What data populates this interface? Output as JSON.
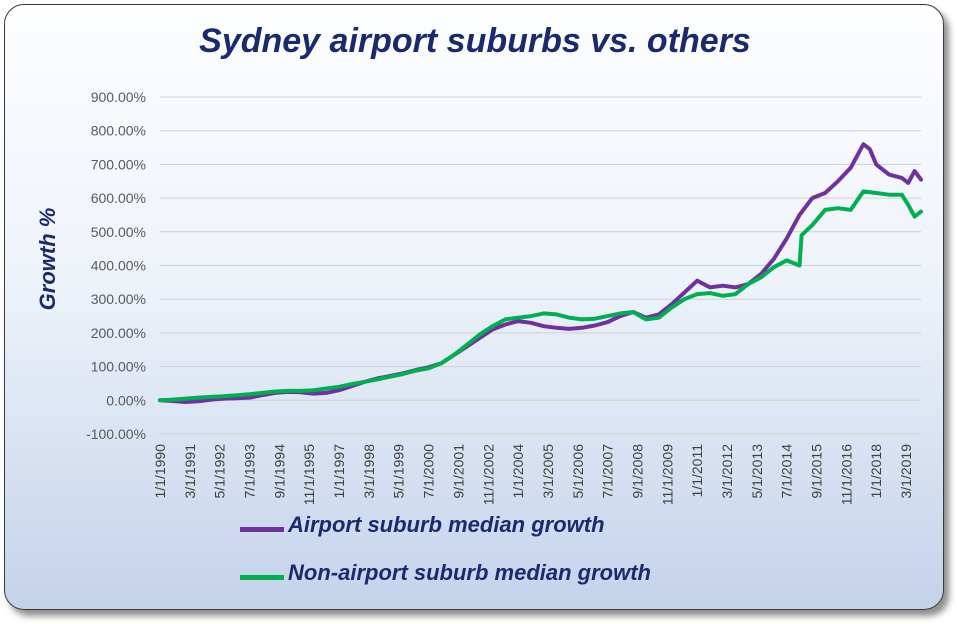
{
  "chart_data": {
    "type": "line",
    "title": "Sydney airport suburbs vs. others",
    "xlabel": "",
    "ylabel": "Growth %",
    "ylim": [
      -100,
      900
    ],
    "yticks": [
      "900.00%",
      "800.00%",
      "700.00%",
      "600.00%",
      "500.00%",
      "400.00%",
      "300.00%",
      "200.00%",
      "100.00%",
      "0.00%",
      "-100.00%"
    ],
    "xticks": [
      "1/1/1990",
      "3/1/1991",
      "5/1/1992",
      "7/1/1993",
      "9/1/1994",
      "11/1/1995",
      "1/1/1997",
      "3/1/1998",
      "5/1/1999",
      "7/1/2000",
      "9/1/2001",
      "11/1/2002",
      "1/1/2004",
      "3/1/2005",
      "5/1/2006",
      "7/1/2007",
      "9/1/2008",
      "11/1/2009",
      "1/1/2011",
      "3/1/2012",
      "5/1/2013",
      "7/1/2014",
      "9/1/2015",
      "11/1/2016",
      "1/1/2018",
      "3/1/2019"
    ],
    "grid": true,
    "legend_position": "bottom",
    "series": [
      {
        "name": "Airport suburb median growth",
        "color": "#7030a0",
        "points": [
          [
            "1990-01",
            0
          ],
          [
            "1990-07",
            -2
          ],
          [
            "1991-01",
            -5
          ],
          [
            "1991-07",
            -3
          ],
          [
            "1992-01",
            2
          ],
          [
            "1992-07",
            5
          ],
          [
            "1993-01",
            6
          ],
          [
            "1993-07",
            8
          ],
          [
            "1994-01",
            15
          ],
          [
            "1994-07",
            22
          ],
          [
            "1995-01",
            25
          ],
          [
            "1995-07",
            24
          ],
          [
            "1996-01",
            20
          ],
          [
            "1996-07",
            22
          ],
          [
            "1997-01",
            30
          ],
          [
            "1997-07",
            42
          ],
          [
            "1998-01",
            55
          ],
          [
            "1998-07",
            65
          ],
          [
            "1999-01",
            72
          ],
          [
            "1999-07",
            80
          ],
          [
            "2000-01",
            90
          ],
          [
            "2000-07",
            98
          ],
          [
            "2001-01",
            110
          ],
          [
            "2001-07",
            135
          ],
          [
            "2002-01",
            160
          ],
          [
            "2002-07",
            185
          ],
          [
            "2003-01",
            210
          ],
          [
            "2003-07",
            225
          ],
          [
            "2004-01",
            235
          ],
          [
            "2004-07",
            230
          ],
          [
            "2005-01",
            220
          ],
          [
            "2005-07",
            215
          ],
          [
            "2006-01",
            212
          ],
          [
            "2006-07",
            215
          ],
          [
            "2007-01",
            222
          ],
          [
            "2007-07",
            232
          ],
          [
            "2008-01",
            250
          ],
          [
            "2008-07",
            262
          ],
          [
            "2009-01",
            245
          ],
          [
            "2009-07",
            255
          ],
          [
            "2010-01",
            285
          ],
          [
            "2010-07",
            320
          ],
          [
            "2011-01",
            355
          ],
          [
            "2011-07",
            335
          ],
          [
            "2012-01",
            340
          ],
          [
            "2012-07",
            335
          ],
          [
            "2013-01",
            345
          ],
          [
            "2013-07",
            375
          ],
          [
            "2014-01",
            420
          ],
          [
            "2014-07",
            480
          ],
          [
            "2015-01",
            550
          ],
          [
            "2015-07",
            600
          ],
          [
            "2016-01",
            615
          ],
          [
            "2016-07",
            650
          ],
          [
            "2017-01",
            690
          ],
          [
            "2017-07",
            760
          ],
          [
            "2017-10",
            745
          ],
          [
            "2018-01",
            700
          ],
          [
            "2018-07",
            670
          ],
          [
            "2019-01",
            660
          ],
          [
            "2019-04",
            645
          ],
          [
            "2019-07",
            680
          ],
          [
            "2019-10",
            655
          ]
        ]
      },
      {
        "name": "Non-airport suburb median growth",
        "color": "#00b050",
        "points": [
          [
            "1990-01",
            0
          ],
          [
            "1990-07",
            2
          ],
          [
            "1991-01",
            5
          ],
          [
            "1991-07",
            8
          ],
          [
            "1992-01",
            10
          ],
          [
            "1992-07",
            12
          ],
          [
            "1993-01",
            15
          ],
          [
            "1993-07",
            18
          ],
          [
            "1994-01",
            22
          ],
          [
            "1994-07",
            26
          ],
          [
            "1995-01",
            28
          ],
          [
            "1995-07",
            28
          ],
          [
            "1996-01",
            30
          ],
          [
            "1996-07",
            35
          ],
          [
            "1997-01",
            40
          ],
          [
            "1997-07",
            48
          ],
          [
            "1998-01",
            55
          ],
          [
            "1998-07",
            62
          ],
          [
            "1999-01",
            70
          ],
          [
            "1999-07",
            78
          ],
          [
            "2000-01",
            88
          ],
          [
            "2000-07",
            95
          ],
          [
            "2001-01",
            110
          ],
          [
            "2001-07",
            135
          ],
          [
            "2002-01",
            165
          ],
          [
            "2002-07",
            195
          ],
          [
            "2003-01",
            220
          ],
          [
            "2003-07",
            240
          ],
          [
            "2004-01",
            245
          ],
          [
            "2004-07",
            250
          ],
          [
            "2005-01",
            258
          ],
          [
            "2005-07",
            255
          ],
          [
            "2006-01",
            245
          ],
          [
            "2006-07",
            240
          ],
          [
            "2007-01",
            242
          ],
          [
            "2007-07",
            250
          ],
          [
            "2008-01",
            258
          ],
          [
            "2008-07",
            262
          ],
          [
            "2009-01",
            240
          ],
          [
            "2009-07",
            245
          ],
          [
            "2010-01",
            275
          ],
          [
            "2010-07",
            300
          ],
          [
            "2011-01",
            315
          ],
          [
            "2011-07",
            318
          ],
          [
            "2012-01",
            310
          ],
          [
            "2012-07",
            315
          ],
          [
            "2013-01",
            345
          ],
          [
            "2013-07",
            365
          ],
          [
            "2014-01",
            395
          ],
          [
            "2014-07",
            415
          ],
          [
            "2015-01",
            400
          ],
          [
            "2015-02",
            490
          ],
          [
            "2015-07",
            520
          ],
          [
            "2016-01",
            565
          ],
          [
            "2016-07",
            570
          ],
          [
            "2017-01",
            565
          ],
          [
            "2017-07",
            620
          ],
          [
            "2018-01",
            615
          ],
          [
            "2018-07",
            610
          ],
          [
            "2019-01",
            610
          ],
          [
            "2019-04",
            580
          ],
          [
            "2019-07",
            545
          ],
          [
            "2019-10",
            560
          ]
        ]
      }
    ]
  }
}
